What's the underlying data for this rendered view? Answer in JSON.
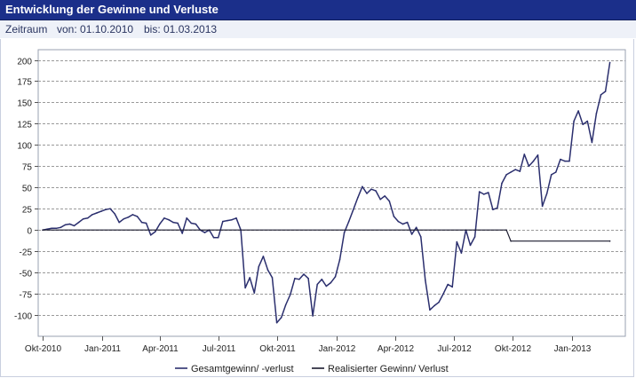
{
  "header": {
    "title": "Entwicklung der Gewinne und Verluste",
    "period_label": "Zeitraum",
    "from_text": "von: 01.10.2010",
    "to_text": "bis: 01.03.2013"
  },
  "chart_data": {
    "type": "line",
    "title": "",
    "xlabel": "",
    "ylabel": "",
    "ylim": [
      -125,
      212
    ],
    "yticks": [
      200,
      175,
      150,
      125,
      100,
      75,
      50,
      25,
      0,
      -25,
      -50,
      -75,
      -100
    ],
    "x_range": [
      "2010-09-24",
      "2013-03-25"
    ],
    "xticks": [
      {
        "label": "Okt-2010",
        "date": "2010-10-01"
      },
      {
        "label": "Jan-2011",
        "date": "2011-01-01"
      },
      {
        "label": "Apr-2011",
        "date": "2011-04-01"
      },
      {
        "label": "Jul-2011",
        "date": "2011-07-01"
      },
      {
        "label": "Okt-2011",
        "date": "2011-10-01"
      },
      {
        "label": "Jan-2012",
        "date": "2012-01-01"
      },
      {
        "label": "Apr-2012",
        "date": "2012-04-01"
      },
      {
        "label": "Jul-2012",
        "date": "2012-07-01"
      },
      {
        "label": "Okt-2012",
        "date": "2012-10-01"
      },
      {
        "label": "Jan-2013",
        "date": "2013-01-01"
      }
    ],
    "grid": true,
    "legend_position": "bottom",
    "series": [
      {
        "name": "Gesamtgewinn/ -verlust",
        "color": "#2b2f6e",
        "points": [
          [
            "2010-10-01",
            0
          ],
          [
            "2010-10-08",
            1
          ],
          [
            "2010-10-15",
            2
          ],
          [
            "2010-10-22",
            2
          ],
          [
            "2010-10-29",
            3
          ],
          [
            "2010-11-05",
            6
          ],
          [
            "2010-11-12",
            7
          ],
          [
            "2010-11-19",
            5
          ],
          [
            "2010-11-26",
            9
          ],
          [
            "2010-12-03",
            13
          ],
          [
            "2010-12-10",
            14
          ],
          [
            "2010-12-17",
            18
          ],
          [
            "2010-12-24",
            20
          ],
          [
            "2010-12-31",
            22
          ],
          [
            "2011-01-07",
            24
          ],
          [
            "2011-01-14",
            25
          ],
          [
            "2011-01-21",
            19
          ],
          [
            "2011-01-28",
            9
          ],
          [
            "2011-02-04",
            13
          ],
          [
            "2011-02-11",
            15
          ],
          [
            "2011-02-18",
            18
          ],
          [
            "2011-02-25",
            16
          ],
          [
            "2011-03-04",
            9
          ],
          [
            "2011-03-11",
            8
          ],
          [
            "2011-03-18",
            -6
          ],
          [
            "2011-03-25",
            -2
          ],
          [
            "2011-04-01",
            7
          ],
          [
            "2011-04-08",
            14
          ],
          [
            "2011-04-15",
            12
          ],
          [
            "2011-04-22",
            9
          ],
          [
            "2011-04-29",
            8
          ],
          [
            "2011-05-06",
            -4
          ],
          [
            "2011-05-13",
            14
          ],
          [
            "2011-05-20",
            8
          ],
          [
            "2011-05-27",
            7
          ],
          [
            "2011-06-03",
            0
          ],
          [
            "2011-06-10",
            -3
          ],
          [
            "2011-06-17",
            0
          ],
          [
            "2011-06-24",
            -9
          ],
          [
            "2011-07-01",
            -9
          ],
          [
            "2011-07-08",
            10
          ],
          [
            "2011-07-15",
            11
          ],
          [
            "2011-07-22",
            12
          ],
          [
            "2011-07-29",
            14
          ],
          [
            "2011-08-05",
            0
          ],
          [
            "2011-08-12",
            -68
          ],
          [
            "2011-08-19",
            -56
          ],
          [
            "2011-08-26",
            -74
          ],
          [
            "2011-09-02",
            -43
          ],
          [
            "2011-09-09",
            -31
          ],
          [
            "2011-09-16",
            -47
          ],
          [
            "2011-09-23",
            -56
          ],
          [
            "2011-09-30",
            -109
          ],
          [
            "2011-10-07",
            -103
          ],
          [
            "2011-10-14",
            -88
          ],
          [
            "2011-10-21",
            -76
          ],
          [
            "2011-10-28",
            -57
          ],
          [
            "2011-11-04",
            -58
          ],
          [
            "2011-11-11",
            -52
          ],
          [
            "2011-11-18",
            -57
          ],
          [
            "2011-11-25",
            -101
          ],
          [
            "2011-12-02",
            -64
          ],
          [
            "2011-12-09",
            -58
          ],
          [
            "2011-12-16",
            -66
          ],
          [
            "2011-12-23",
            -62
          ],
          [
            "2011-12-30",
            -55
          ],
          [
            "2012-01-06",
            -35
          ],
          [
            "2012-01-13",
            -3
          ],
          [
            "2012-01-20",
            10
          ],
          [
            "2012-01-27",
            24
          ],
          [
            "2012-02-03",
            38
          ],
          [
            "2012-02-10",
            51
          ],
          [
            "2012-02-17",
            43
          ],
          [
            "2012-02-24",
            48
          ],
          [
            "2012-03-02",
            46
          ],
          [
            "2012-03-09",
            36
          ],
          [
            "2012-03-16",
            40
          ],
          [
            "2012-03-23",
            34
          ],
          [
            "2012-03-30",
            16
          ],
          [
            "2012-04-06",
            10
          ],
          [
            "2012-04-13",
            7
          ],
          [
            "2012-04-20",
            9
          ],
          [
            "2012-04-27",
            -5
          ],
          [
            "2012-05-04",
            3
          ],
          [
            "2012-05-11",
            -8
          ],
          [
            "2012-05-18",
            -59
          ],
          [
            "2012-05-25",
            -94
          ],
          [
            "2012-06-01",
            -89
          ],
          [
            "2012-06-08",
            -85
          ],
          [
            "2012-06-15",
            -75
          ],
          [
            "2012-06-22",
            -64
          ],
          [
            "2012-06-29",
            -67
          ],
          [
            "2012-07-06",
            -14
          ],
          [
            "2012-07-13",
            -27
          ],
          [
            "2012-07-20",
            0
          ],
          [
            "2012-07-27",
            -18
          ],
          [
            "2012-08-03",
            -8
          ],
          [
            "2012-08-10",
            45
          ],
          [
            "2012-08-17",
            42
          ],
          [
            "2012-08-24",
            44
          ],
          [
            "2012-08-31",
            24
          ],
          [
            "2012-09-07",
            26
          ],
          [
            "2012-09-14",
            55
          ],
          [
            "2012-09-21",
            65
          ],
          [
            "2012-09-28",
            68
          ],
          [
            "2012-10-05",
            71
          ],
          [
            "2012-10-12",
            69
          ],
          [
            "2012-10-19",
            89
          ],
          [
            "2012-10-26",
            75
          ],
          [
            "2012-11-02",
            81
          ],
          [
            "2012-11-09",
            88
          ],
          [
            "2012-11-16",
            28
          ],
          [
            "2012-11-23",
            43
          ],
          [
            "2012-11-30",
            65
          ],
          [
            "2012-12-07",
            68
          ],
          [
            "2012-12-14",
            83
          ],
          [
            "2012-12-21",
            81
          ],
          [
            "2012-12-28",
            81
          ],
          [
            "2013-01-04",
            128
          ],
          [
            "2013-01-11",
            140
          ],
          [
            "2013-01-18",
            124
          ],
          [
            "2013-01-25",
            128
          ],
          [
            "2013-02-01",
            103
          ],
          [
            "2013-02-08",
            137
          ],
          [
            "2013-02-15",
            159
          ],
          [
            "2013-02-22",
            163
          ],
          [
            "2013-03-01",
            197
          ]
        ]
      },
      {
        "name": "Realisierter Gewinn/ Verlust",
        "color": "#1a1a2e",
        "points": [
          [
            "2010-10-01",
            0
          ],
          [
            "2012-09-21",
            0
          ],
          [
            "2012-09-28",
            -13
          ],
          [
            "2013-03-01",
            -13
          ]
        ]
      }
    ]
  }
}
